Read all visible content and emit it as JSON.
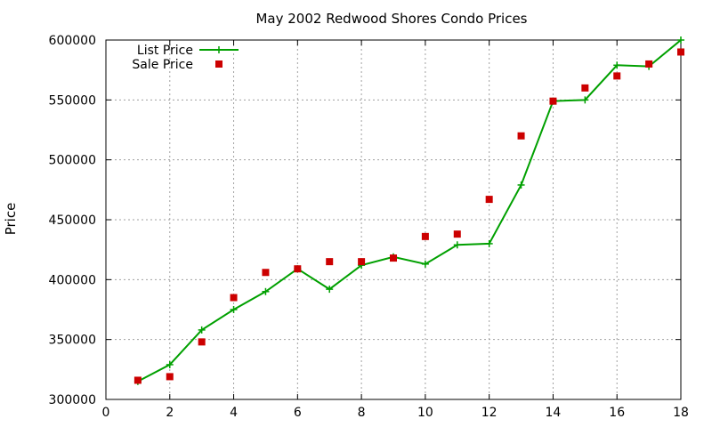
{
  "chart_data": {
    "type": "line",
    "title": "May 2002 Redwood Shores Condo Prices",
    "xlabel": "",
    "ylabel": "Price",
    "xlim": [
      0,
      18
    ],
    "ylim": [
      300000,
      600000
    ],
    "xticks": [
      0,
      2,
      4,
      6,
      8,
      10,
      12,
      14,
      16,
      18
    ],
    "yticks": [
      300000,
      350000,
      400000,
      450000,
      500000,
      550000,
      600000
    ],
    "grid": true,
    "legend_position": "top-left",
    "series": [
      {
        "name": "List Price",
        "style": "line-with-plus-markers",
        "color": "#00a000",
        "x": [
          1,
          2,
          3,
          4,
          5,
          6,
          7,
          8,
          9,
          10,
          11,
          12,
          13,
          14,
          15,
          16,
          17,
          18
        ],
        "y": [
          315000,
          329000,
          358000,
          375000,
          390000,
          409000,
          392000,
          412000,
          419000,
          413000,
          429000,
          430000,
          479000,
          549000,
          550000,
          579000,
          578000,
          600000
        ]
      },
      {
        "name": "Sale Price",
        "style": "square-markers",
        "color": "#cc0000",
        "x": [
          1,
          2,
          3,
          4,
          5,
          6,
          7,
          8,
          9,
          10,
          11,
          12,
          13,
          14,
          15,
          16,
          17,
          18
        ],
        "y": [
          316000,
          319000,
          348000,
          385000,
          406000,
          409000,
          415000,
          415000,
          418000,
          436000,
          438000,
          467000,
          520000,
          549000,
          560000,
          570000,
          580000,
          590000
        ]
      }
    ]
  }
}
